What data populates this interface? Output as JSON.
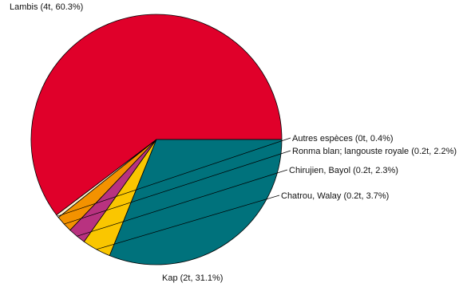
{
  "chart_data": {
    "type": "pie",
    "slices": [
      {
        "name": "Lambis",
        "display": "Lambis (4t, 60.3%)",
        "tonnes": 4,
        "percent": 60.3,
        "color": "#e0002a"
      },
      {
        "name": "Autres espèces",
        "display": "Autres espèces (0t, 0.4%)",
        "tonnes": 0,
        "percent": 0.4,
        "color": "#fdf2d0"
      },
      {
        "name": "Ronma blan; langouste royale",
        "display": "Ronma blan; langouste royale (0.2t, 2.2%)",
        "tonnes": 0.2,
        "percent": 2.2,
        "color": "#f39200"
      },
      {
        "name": "Chirujien, Bayol",
        "display": "Chirujien, Bayol (0.2t, 2.3%)",
        "tonnes": 0.2,
        "percent": 2.3,
        "color": "#b83280"
      },
      {
        "name": "Chatrou, Walay",
        "display": "Chatrou, Walay (0.2t, 3.7%)",
        "tonnes": 0.2,
        "percent": 3.7,
        "color": "#fac600"
      },
      {
        "name": "Kap",
        "display": "Kap (2t, 31.1%)",
        "tonnes": 2,
        "percent": 31.1,
        "color": "#00727c"
      }
    ],
    "start_angle_deg": 0,
    "direction": "counterclockwise",
    "legend": "none"
  }
}
